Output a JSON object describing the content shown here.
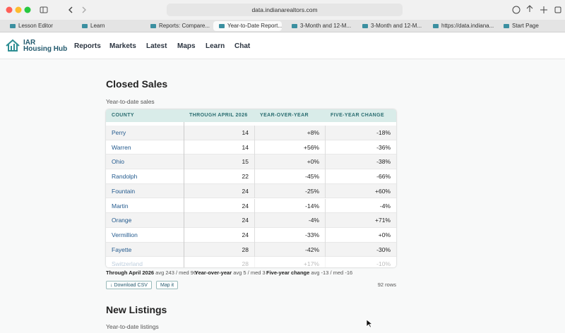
{
  "browser": {
    "url": "data.indianarealtors.com",
    "tabs": [
      "Lesson Editor",
      "Learn",
      "Reports: Compare...",
      "Year-to-Date Report...",
      "3-Month and 12-M...",
      "3-Month and 12-M...",
      "https://data.indiana...",
      "Start Page"
    ]
  },
  "nav": {
    "logo_top": "IAR",
    "logo_bottom": "Housing Hub",
    "items": [
      "Reports",
      "Markets",
      "Latest",
      "Maps",
      "Learn",
      "Chat"
    ]
  },
  "closed_sales": {
    "title": "Closed Sales",
    "subtitle": "Year-to-date sales",
    "table": {
      "headers": [
        "COUNTY",
        "THROUGH APRIL 2026 ▲",
        "YEAR-OVER-YEAR",
        "FIVE-YEAR CHANGE"
      ],
      "rows": [
        [
          "Perry",
          14,
          "+8%",
          "-18%"
        ],
        [
          "Warren",
          14,
          "+56%",
          "-36%"
        ],
        [
          "Ohio",
          15,
          "+0%",
          "-38%"
        ],
        [
          "Randolph",
          22,
          "-45%",
          "-66%"
        ],
        [
          "Fountain",
          24,
          "-25%",
          "+60%"
        ],
        [
          "Martin",
          24,
          "-14%",
          "-4%"
        ],
        [
          "Orange",
          24,
          "-4%",
          "+71%"
        ],
        [
          "Vermillion",
          24,
          "-33%",
          "+0%"
        ],
        [
          "Fayette",
          28,
          "-42%",
          "-30%"
        ],
        [
          "Switzerland",
          28,
          "+17%",
          "-10%"
        ]
      ]
    },
    "summary": [
      [
        "Through April 2026",
        "avg 243 / med 96"
      ],
      [
        "Year-over-year",
        "avg 5 / med 3"
      ],
      [
        "Five-year change",
        "avg -13 / med -16"
      ]
    ],
    "buttons": [
      "↓ Download CSV",
      "Map it"
    ],
    "row_count": "92 rows"
  },
  "new_listings": {
    "title": "New Listings",
    "subtitle": "Year-to-date listings"
  }
}
